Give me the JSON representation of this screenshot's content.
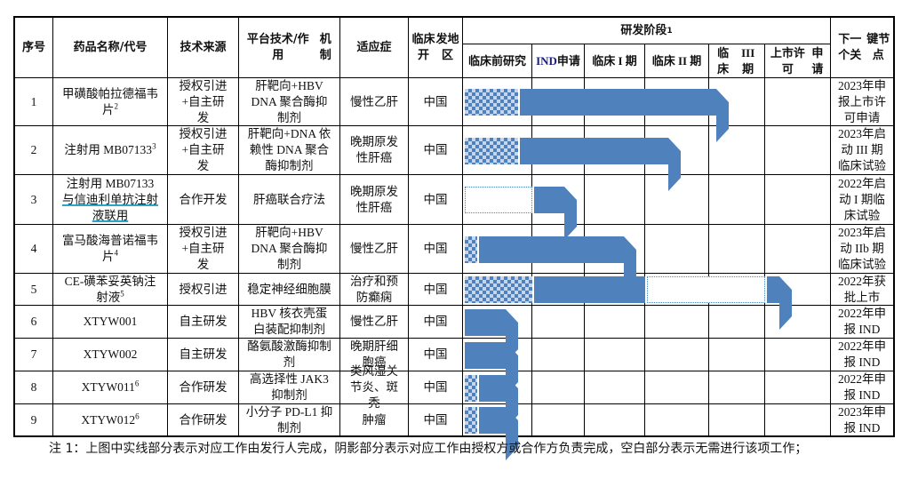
{
  "headers": {
    "seq": "序号",
    "name_l1": "药品名称/",
    "name_l2": "代号",
    "source": "技术来源",
    "platform_l1": "平台技术/作用",
    "platform_l2": "机制",
    "indication": "适应症",
    "region_l1": "临床开",
    "region_l2": "发地区",
    "stage_group": "研发阶段",
    "stage_group_sup": "1",
    "next_l1": "下一个关",
    "next_l2": "键节点",
    "stages": [
      {
        "l1": "临床前",
        "l2": "研究"
      },
      {
        "l1": "IND",
        "l2": "申请"
      },
      {
        "l1": "临床 I 期",
        "l2": ""
      },
      {
        "l1": "临床 II 期",
        "l2": ""
      },
      {
        "l1": "临床",
        "l2": "III 期"
      },
      {
        "l1": "上市许可",
        "l2": "申请"
      }
    ]
  },
  "rows": [
    {
      "seq": "1",
      "name": "甲磺酸帕拉德福韦片",
      "name_sup": "2",
      "source": "授权引进+自主研发",
      "platform": "肝靶向+HBV DNA 聚合酶抑制剂",
      "indication": "慢性乙肝",
      "region": "中国",
      "next": "2023年申报上市许可申请",
      "progress": [
        {
          "type": "shaded",
          "from": 0,
          "to": 0.8
        },
        {
          "type": "solid",
          "to": 4.35
        }
      ]
    },
    {
      "seq": "2",
      "name": "注射用 MB07133",
      "name_sup": "3",
      "source": "授权引进+自主研发",
      "platform": "肝靶向+DNA 依赖性 DNA 聚合酶抑制剂",
      "indication": "晚期原发性肝癌",
      "region": "中国",
      "next": "2023年启动 III 期临床试验",
      "progress": [
        {
          "type": "shaded",
          "from": 0,
          "to": 0.8
        },
        {
          "type": "solid",
          "to": 3.55
        }
      ]
    },
    {
      "seq": "3",
      "name_l1": "注射用 MB07133",
      "name_l2": "与信迪利单抗注射",
      "name_l3": "液联用",
      "source": "合作开发",
      "platform": "肝癌联合疗法",
      "indication": "晚期原发性肝癌",
      "region": "中国",
      "next": "2022年启动 I 期临床试验",
      "progress": [
        {
          "type": "blank",
          "from": 0,
          "to": 1
        },
        {
          "type": "solid",
          "to": 1.85
        }
      ]
    },
    {
      "seq": "4",
      "name": "富马酸海普诺福韦片",
      "name_sup": "4",
      "source": "授权引进+自主研发",
      "platform": "肝靶向+HBV DNA 聚合酶抑制剂",
      "indication": "慢性乙肝",
      "region": "中国",
      "next": "2023年启动 IIb 期临床试验",
      "progress": [
        {
          "type": "shaded",
          "from": 0,
          "to": 0.2
        },
        {
          "type": "solid",
          "to": 2.85
        }
      ]
    },
    {
      "seq": "5",
      "name": "CE-磺苯妥英钠注射液",
      "name_sup": "5",
      "source": "授权引进",
      "platform": "稳定神经细胞膜",
      "indication": "治疗和预防癫痫",
      "region": "中国",
      "next": "2022年获批上市",
      "progress": [
        {
          "type": "shaded",
          "from": 0,
          "to": 1
        },
        {
          "type": "solid",
          "to": 3
        },
        {
          "type": "blank",
          "to": 5
        },
        {
          "type": "solid",
          "to": 5.4
        }
      ]
    },
    {
      "seq": "6",
      "name": "XTYW001",
      "source": "自主研发",
      "platform": "HBV 核衣壳蛋白装配抑制剂",
      "indication": "慢性乙肝",
      "region": "中国",
      "next": "2022年申报 IND",
      "progress": [
        {
          "type": "solid",
          "from": 0,
          "to": 0.8
        }
      ]
    },
    {
      "seq": "7",
      "name": "XTYW002",
      "source": "自主研发",
      "platform": "酪氨酸激酶抑制剂",
      "indication": "晚期肝细胞癌",
      "region": "中国",
      "next": "2022年申报 IND",
      "progress": [
        {
          "type": "solid",
          "from": 0,
          "to": 0.8
        }
      ]
    },
    {
      "seq": "8",
      "name": "XTYW011",
      "name_sup": "6",
      "source": "合作研发",
      "platform": "高选择性 JAK3 抑制剂",
      "indication": "类风湿关节炎、斑秃",
      "region": "中国",
      "next": "2022年申报 IND",
      "progress": [
        {
          "type": "shaded",
          "from": 0,
          "to": 0.2
        },
        {
          "type": "solid",
          "to": 0.8
        }
      ]
    },
    {
      "seq": "9",
      "name": "XTYW012",
      "name_sup": "6",
      "source": "合作研发",
      "platform": "小分子 PD-L1 抑制剂",
      "indication": "肿瘤",
      "region": "中国",
      "next": "2023年申报 IND",
      "progress": [
        {
          "type": "shaded",
          "from": 0,
          "to": 0.2
        },
        {
          "type": "solid",
          "to": 0.8
        }
      ]
    }
  ],
  "note": "注 1：上图中实线部分表示对应工作由发行人完成，阴影部分表示对应工作由授权方或合作方负责完成，空白部分表示无需进行该项工作；",
  "colors": {
    "solid": "#4f81bd",
    "shade_light": "#c6d6ef",
    "border": "#000000"
  }
}
